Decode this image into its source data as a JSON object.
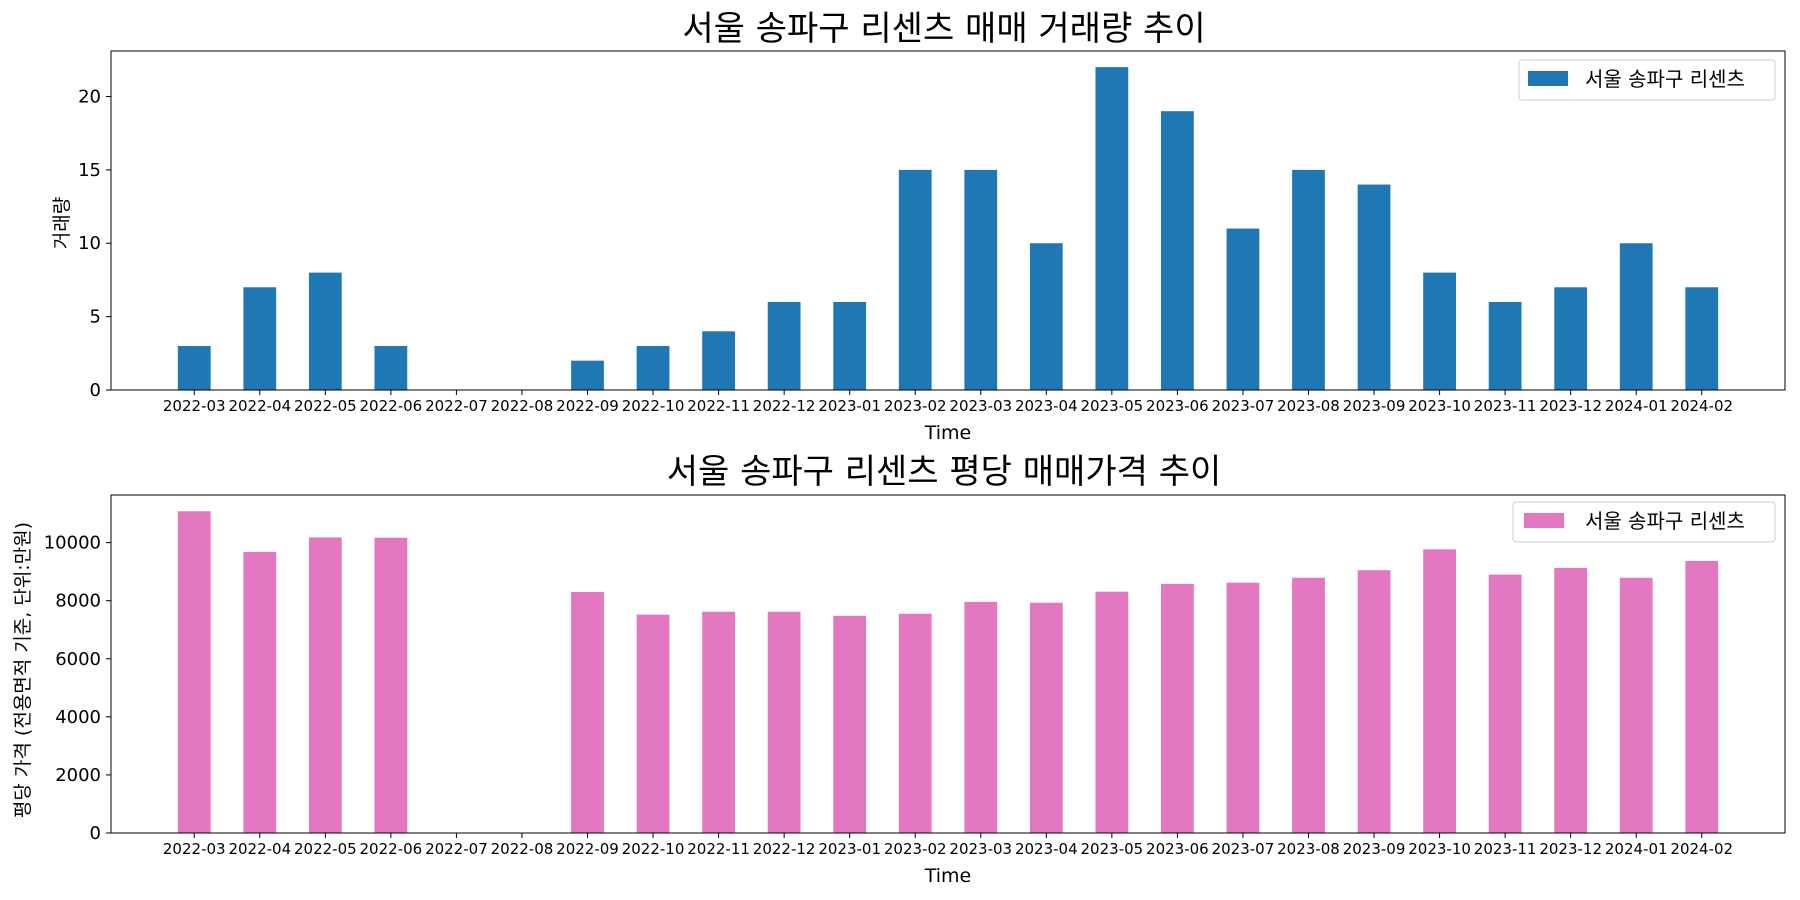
{
  "chart_data": [
    {
      "type": "bar",
      "title": "서울 송파구 리센츠 매매 거래량 추이",
      "xlabel": "Time",
      "ylabel": "거래량",
      "categories": [
        "2022-03",
        "2022-04",
        "2022-05",
        "2022-06",
        "2022-07",
        "2022-08",
        "2022-09",
        "2022-10",
        "2022-11",
        "2022-12",
        "2023-01",
        "2023-02",
        "2023-03",
        "2023-04",
        "2023-05",
        "2023-06",
        "2023-07",
        "2023-08",
        "2023-09",
        "2023-10",
        "2023-11",
        "2023-12",
        "2024-01",
        "2024-02"
      ],
      "series": [
        {
          "name": "서울 송파구 리센츠",
          "color": "#1f77b4",
          "values": [
            3,
            7,
            8,
            3,
            0,
            0,
            2,
            3,
            4,
            6,
            6,
            15,
            15,
            10,
            22,
            19,
            11,
            15,
            14,
            8,
            6,
            7,
            10,
            7
          ]
        }
      ],
      "ylim": [
        0,
        23.1
      ],
      "yticks": [
        0,
        5,
        10,
        15,
        20
      ],
      "grid": false,
      "legend": "top-right"
    },
    {
      "type": "bar",
      "title": "서울 송파구 리센츠 평당 매매가격 추이",
      "xlabel": "Time",
      "ylabel": "평당 가격 (전용면적 기준, 단위:만원)",
      "categories": [
        "2022-03",
        "2022-04",
        "2022-05",
        "2022-06",
        "2022-07",
        "2022-08",
        "2022-09",
        "2022-10",
        "2022-11",
        "2022-12",
        "2023-01",
        "2023-02",
        "2023-03",
        "2023-04",
        "2023-05",
        "2023-06",
        "2023-07",
        "2023-08",
        "2023-09",
        "2023-10",
        "2023-11",
        "2023-12",
        "2024-01",
        "2024-02"
      ],
      "series": [
        {
          "name": "서울 송파구 리센츠",
          "color": "#e377c2",
          "values": [
            11080,
            9680,
            10180,
            10170,
            0,
            0,
            8300,
            7520,
            7620,
            7620,
            7480,
            7550,
            7960,
            7930,
            8310,
            8580,
            8620,
            8790,
            9050,
            9770,
            8900,
            9130,
            8790,
            9370
          ]
        }
      ],
      "ylim": [
        0,
        11640
      ],
      "yticks": [
        0,
        2000,
        4000,
        6000,
        8000,
        10000
      ],
      "grid": false,
      "legend": "top-right"
    }
  ]
}
